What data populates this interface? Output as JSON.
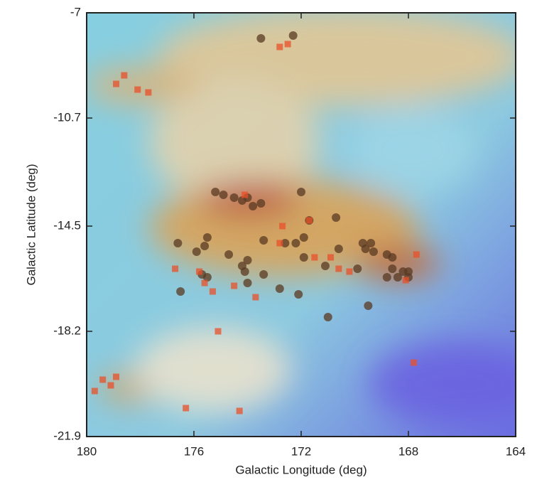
{
  "chart_data": {
    "type": "scatter",
    "xlabel": "Galactic Longitude (deg)",
    "ylabel": "Galactic Latitude (deg)",
    "xlim": [
      180,
      164
    ],
    "xticks": [
      180,
      176,
      172,
      168,
      164
    ],
    "ylim": [
      -21.9,
      -7
    ],
    "yticks": [
      -21.9,
      -18.2,
      -14.5,
      -10.7,
      -7
    ],
    "series": [
      {
        "marker": "circle",
        "color": "#5a3a22",
        "x": [
          173.5,
          172.3,
          175.2,
          174.9,
          174.5,
          174.2,
          174.0,
          173.8,
          173.5,
          172.0,
          170.7,
          171.7,
          175.5,
          175.6,
          175.9,
          176.6,
          174.7,
          174.0,
          174.2,
          174.1,
          173.4,
          172.6,
          172.2,
          171.9,
          171.9,
          171.1,
          170.6,
          169.7,
          169.4,
          169.3,
          169.6,
          169.9,
          168.8,
          168.6,
          168.6,
          168.2,
          168.0,
          168.8,
          168.4,
          168.0,
          169.5,
          171.0,
          172.1,
          172.8,
          174.0,
          173.4,
          175.7,
          175.5,
          176.5
        ],
        "y": [
          -7.9,
          -7.8,
          -13.3,
          -13.4,
          -13.5,
          -13.6,
          -13.5,
          -13.8,
          -13.7,
          -13.3,
          -14.2,
          -14.3,
          -14.9,
          -15.2,
          -15.4,
          -15.1,
          -15.5,
          -15.7,
          -15.9,
          -16.1,
          -15.0,
          -15.1,
          -15.1,
          -14.9,
          -15.6,
          -15.9,
          -15.3,
          -15.1,
          -15.1,
          -15.4,
          -15.3,
          -16.0,
          -15.5,
          -15.6,
          -16.0,
          -16.1,
          -16.1,
          -16.3,
          -16.3,
          -16.3,
          -17.3,
          -17.7,
          -16.9,
          -16.7,
          -16.5,
          -16.2,
          -16.2,
          -16.3,
          -16.8
        ]
      },
      {
        "marker": "square",
        "color": "#e8502a",
        "x": [
          178.6,
          178.9,
          178.1,
          177.7,
          172.5,
          172.8,
          174.1,
          172.7,
          171.7,
          172.8,
          175.8,
          175.6,
          175.3,
          176.7,
          174.5,
          173.7,
          171.5,
          170.9,
          170.6,
          170.2,
          167.7,
          168.1,
          175.1,
          167.8,
          179.7,
          179.4,
          179.1,
          178.9,
          176.3,
          174.3
        ],
        "y": [
          -9.2,
          -9.5,
          -9.7,
          -9.8,
          -8.1,
          -8.2,
          -13.4,
          -14.5,
          -14.3,
          -15.1,
          -16.1,
          -16.5,
          -16.8,
          -16.0,
          -16.6,
          -17.0,
          -15.6,
          -15.6,
          -16.0,
          -16.1,
          -15.5,
          -16.4,
          -18.2,
          -19.3,
          -20.3,
          -19.9,
          -20.1,
          -19.8,
          -20.9,
          -21.0
        ]
      }
    ]
  }
}
